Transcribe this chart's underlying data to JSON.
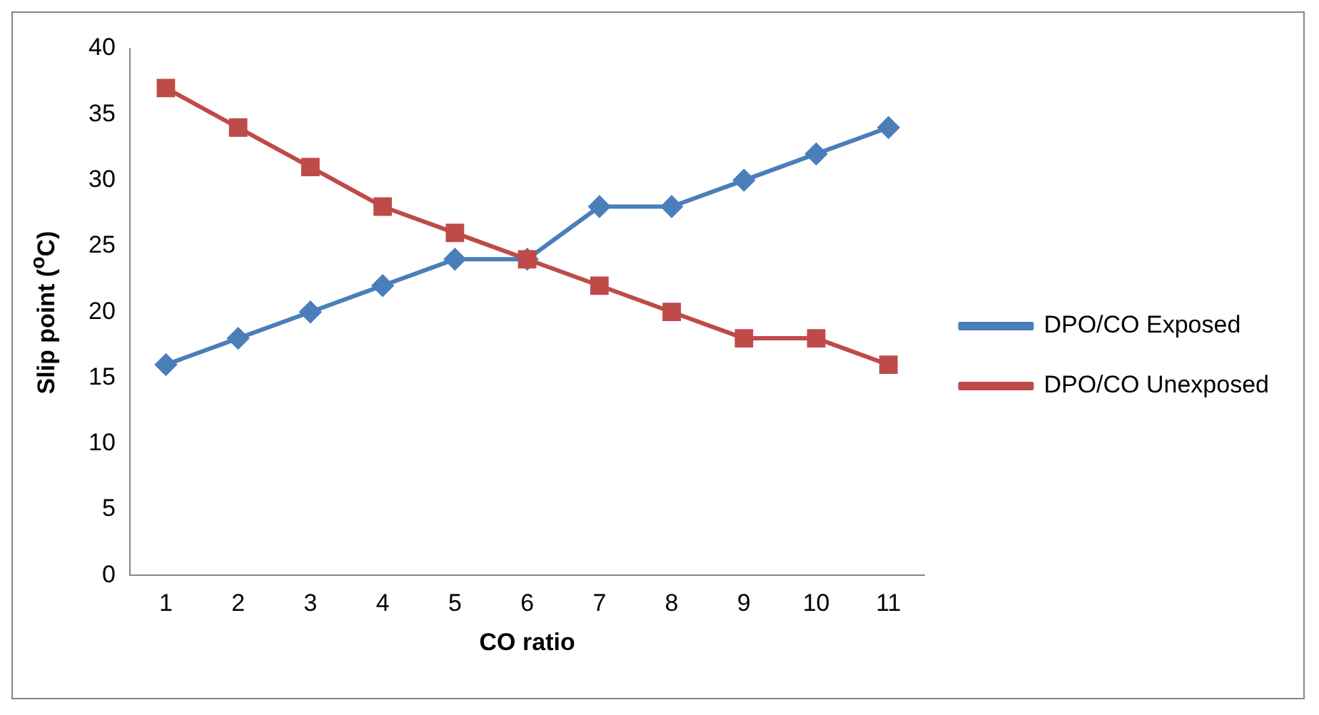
{
  "chart_data": {
    "type": "line",
    "xlabel": "CO ratio",
    "ylabel": "Slip point ($^{o}$C)",
    "categories": [
      "1",
      "2",
      "3",
      "4",
      "5",
      "6",
      "7",
      "8",
      "9",
      "10",
      "11"
    ],
    "series": [
      {
        "name": "DPO/CO Exposed",
        "color": "#4a7ebb",
        "marker": "diamond",
        "values": [
          16,
          18,
          20,
          22,
          24,
          24,
          28,
          28,
          30,
          32,
          34
        ]
      },
      {
        "name": "DPO/CO Unexposed",
        "color": "#be4b48",
        "marker": "square",
        "values": [
          37,
          34,
          31,
          28,
          26,
          24,
          22,
          20,
          18,
          18,
          16
        ]
      }
    ],
    "ylim": [
      0,
      40
    ],
    "yticks": [
      0,
      5,
      10,
      15,
      20,
      25,
      30,
      35,
      40
    ],
    "grid": false,
    "legend": "right",
    "line_style": "solid"
  }
}
